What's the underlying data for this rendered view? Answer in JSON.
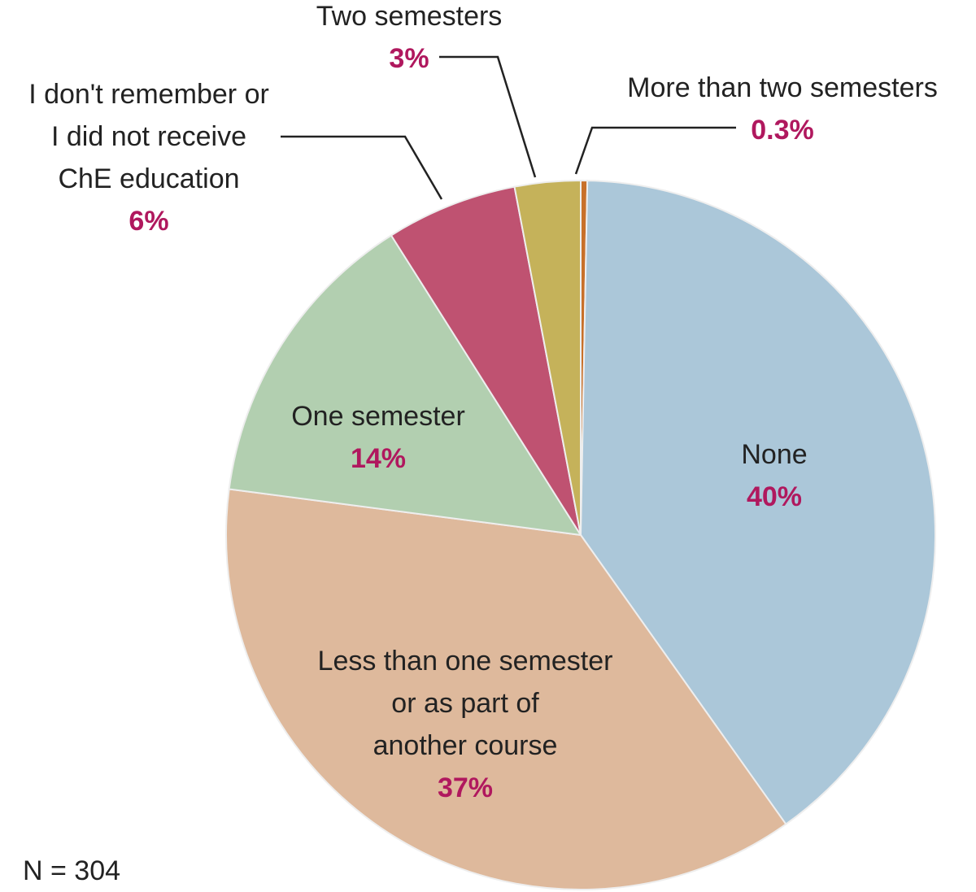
{
  "chart_data": {
    "type": "pie",
    "categories": [
      "More than two semesters",
      "None",
      "Less than one semester\nor as part of\nanother course",
      "One semester",
      "I don't remember or\nI did not receive\nChE education",
      "Two semesters"
    ],
    "values": [
      0.3,
      40,
      37,
      14,
      6,
      3
    ],
    "value_labels": [
      "0.3%",
      "40%",
      "37%",
      "14%",
      "6%",
      "3%"
    ],
    "colors": [
      "#c8702a",
      "#abc7d9",
      "#deb99c",
      "#b2cfb0",
      "#bf5271",
      "#c5b25a"
    ],
    "note": "N = 304"
  }
}
